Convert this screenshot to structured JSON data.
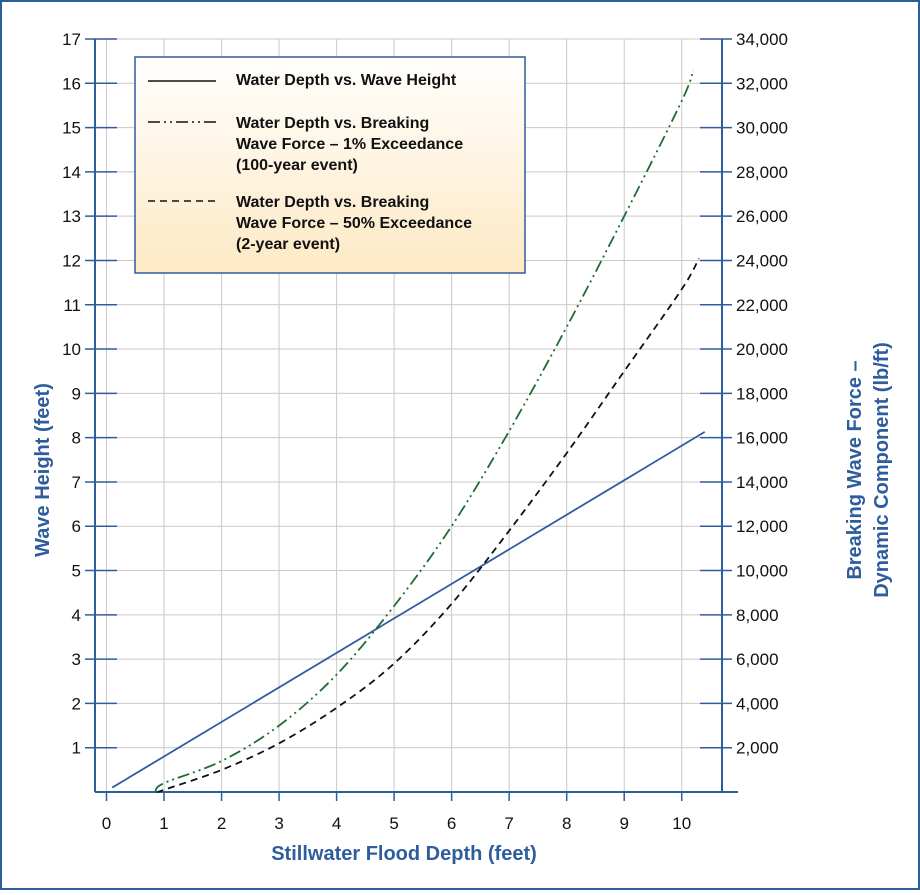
{
  "chart_data": {
    "type": "line",
    "xlabel": "Stillwater Flood Depth (feet)",
    "ylabel": "Wave Height (feet)",
    "y2label": [
      "Breaking Wave Force –",
      "Dynamic Component (lb/ft)"
    ],
    "xlim": [
      -0.2,
      10.7
    ],
    "ylim": [
      0,
      17
    ],
    "y2lim": [
      0,
      34000
    ],
    "x_ticks": [
      "0",
      "1",
      "2",
      "3",
      "4",
      "5",
      "6",
      "7",
      "8",
      "9",
      "10"
    ],
    "y_ticks": [
      "1",
      "2",
      "3",
      "4",
      "5",
      "6",
      "7",
      "8",
      "9",
      "10",
      "11",
      "12",
      "13",
      "14",
      "15",
      "16",
      "17"
    ],
    "y2_ticks": [
      "2,000",
      "4,000",
      "6,000",
      "8,000",
      "10,000",
      "12,000",
      "14,000",
      "16,000",
      "18,000",
      "20,000",
      "22,000",
      "24,000",
      "26,000",
      "28,000",
      "30,000",
      "32,000",
      "34,000"
    ],
    "grid": true,
    "legend_position": "top-left",
    "colors": {
      "axis": "#2e5d9e",
      "wave_height": "#2e5d9e",
      "force_1pct": "#1f6b35",
      "force_50pct": "#111111",
      "legend_bg_top": "#ffffff",
      "legend_bg_bottom": "#fde9c4"
    },
    "series": [
      {
        "name": "Water Depth vs. Wave Height",
        "legend_lines": [
          "Water Depth vs. Wave Height"
        ],
        "axis": "left",
        "dash": "solid",
        "x": [
          0.1,
          10.4
        ],
        "y": [
          0.1,
          8.13
        ]
      },
      {
        "name": "Water Depth vs. Breaking Wave Force – 1% Exceedance (100-year event)",
        "legend_lines": [
          "Water Depth vs. Breaking",
          "Wave Force – 1% Exceedance",
          "(100-year event)"
        ],
        "axis": "right",
        "dash": "dashdot",
        "x": [
          0.85,
          1,
          2,
          3,
          4,
          5,
          6,
          7,
          8,
          9,
          10,
          10.2
        ],
        "y": [
          0,
          400,
          1400,
          3000,
          5300,
          8400,
          12000,
          16300,
          21000,
          26000,
          31200,
          32600
        ]
      },
      {
        "name": "Water Depth vs. Breaking Wave Force – 50% Exceedance (2-year event)",
        "legend_lines": [
          "Water Depth vs. Breaking",
          "Wave Force – 50% Exceedance",
          "(2-year event)"
        ],
        "axis": "right",
        "dash": "dashed",
        "x": [
          0.9,
          1,
          2,
          3,
          4,
          5,
          6,
          7,
          8,
          9,
          10,
          10.3
        ],
        "y": [
          0,
          100,
          1000,
          2200,
          3800,
          5800,
          8500,
          11800,
          15300,
          19000,
          22700,
          24100
        ]
      }
    ]
  }
}
